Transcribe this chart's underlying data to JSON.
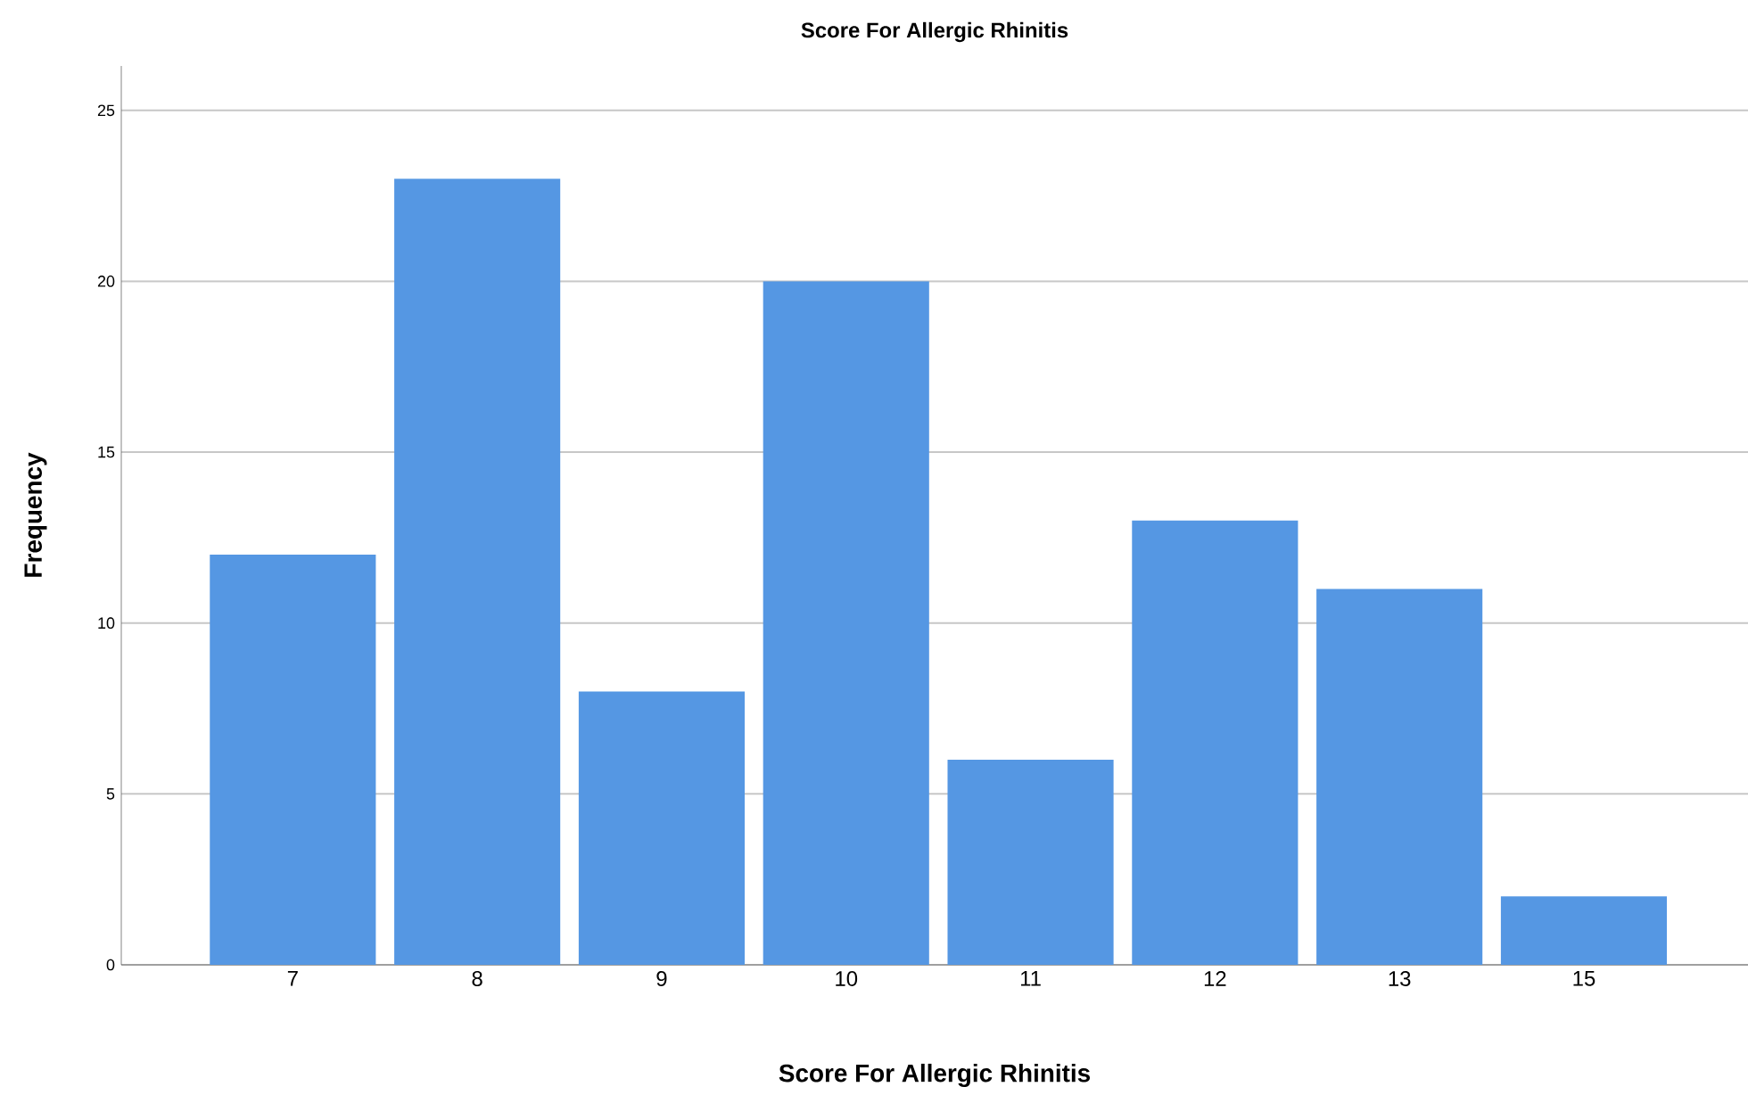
{
  "chart_data": {
    "type": "bar",
    "title": "Score For Allergic Rhinitis",
    "xlabel": "Score For Allergic Rhinitis",
    "ylabel": "Frequency",
    "categories": [
      "7",
      "8",
      "9",
      "10",
      "11",
      "12",
      "13",
      "15"
    ],
    "values": [
      12,
      23,
      8,
      20,
      6,
      13,
      11,
      2
    ],
    "color": "#5597e3",
    "ylim": [
      0,
      26.3
    ],
    "yticks": [
      0,
      5,
      10,
      15,
      20,
      25
    ],
    "grid": "y"
  }
}
